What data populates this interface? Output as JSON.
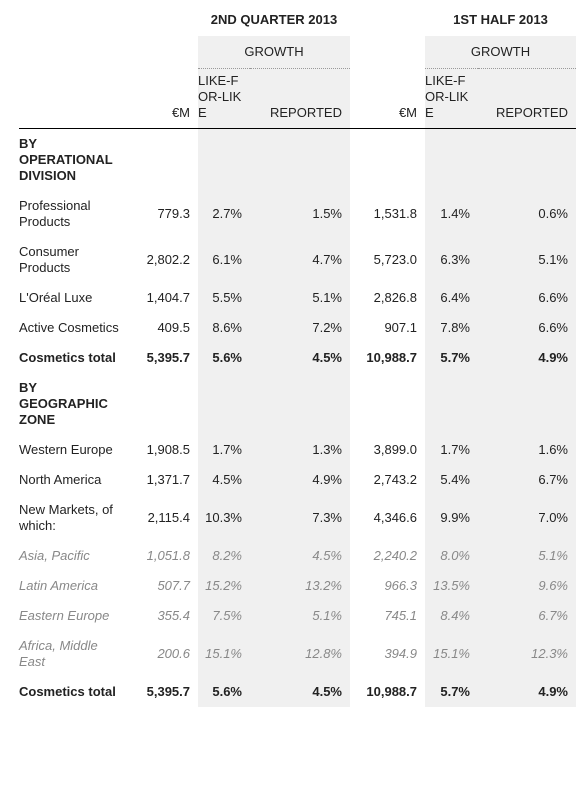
{
  "header": {
    "groups": [
      {
        "title": "2ND QUARTER 2013",
        "growth": "GROWTH"
      },
      {
        "title": "1ST HALF 2013",
        "growth": "GROWTH"
      }
    ],
    "columns": [
      "€M",
      "LIKE-FOR-LIKE",
      "REPORTED",
      "€M",
      "LIKE-FOR-LIKE",
      "REPORTED"
    ]
  },
  "table": {
    "rows": [
      {
        "label": "BY OPERATIONAL DIVISION",
        "style": "section"
      },
      {
        "label": "Professional Products",
        "values": [
          "779.3",
          "2.7%",
          "1.5%",
          "1,531.8",
          "1.4%",
          "0.6%"
        ],
        "style": "normal"
      },
      {
        "label": "Consumer Products",
        "values": [
          "2,802.2",
          "6.1%",
          "4.7%",
          "5,723.0",
          "6.3%",
          "5.1%"
        ],
        "style": "normal"
      },
      {
        "label": "L'Oréal Luxe",
        "values": [
          "1,404.7",
          "5.5%",
          "5.1%",
          "2,826.8",
          "6.4%",
          "6.6%"
        ],
        "style": "normal"
      },
      {
        "label": "Active Cosmetics",
        "values": [
          "409.5",
          "8.6%",
          "7.2%",
          "907.1",
          "7.8%",
          "6.6%"
        ],
        "style": "normal"
      },
      {
        "label": "Cosmetics total",
        "values": [
          "5,395.7",
          "5.6%",
          "4.5%",
          "10,988.7",
          "5.7%",
          "4.9%"
        ],
        "style": "total"
      },
      {
        "label": "BY GEOGRAPHIC ZONE",
        "style": "section"
      },
      {
        "label": "Western Europe",
        "values": [
          "1,908.5",
          "1.7%",
          "1.3%",
          "3,899.0",
          "1.7%",
          "1.6%"
        ],
        "style": "normal"
      },
      {
        "label": "North America",
        "values": [
          "1,371.7",
          "4.5%",
          "4.9%",
          "2,743.2",
          "5.4%",
          "6.7%"
        ],
        "style": "normal"
      },
      {
        "label": "New Markets, of which:",
        "values": [
          "2,115.4",
          "10.3%",
          "7.3%",
          "4,346.6",
          "9.9%",
          "7.0%"
        ],
        "style": "normal"
      },
      {
        "label": "Asia, Pacific",
        "values": [
          "1,051.8",
          "8.2%",
          "4.5%",
          "2,240.2",
          "8.0%",
          "5.1%"
        ],
        "style": "italic"
      },
      {
        "label": "Latin America",
        "values": [
          "507.7",
          "15.2%",
          "13.2%",
          "966.3",
          "13.5%",
          "9.6%"
        ],
        "style": "italic"
      },
      {
        "label": "Eastern Europe",
        "values": [
          "355.4",
          "7.5%",
          "5.1%",
          "745.1",
          "8.4%",
          "6.7%"
        ],
        "style": "italic"
      },
      {
        "label": "Africa, Middle East",
        "values": [
          "200.6",
          "15.1%",
          "12.8%",
          "394.9",
          "15.1%",
          "12.3%"
        ],
        "style": "italic"
      },
      {
        "label": "Cosmetics total",
        "values": [
          "5,395.7",
          "5.6%",
          "4.5%",
          "10,988.7",
          "5.7%",
          "4.9%"
        ],
        "style": "total"
      }
    ]
  }
}
